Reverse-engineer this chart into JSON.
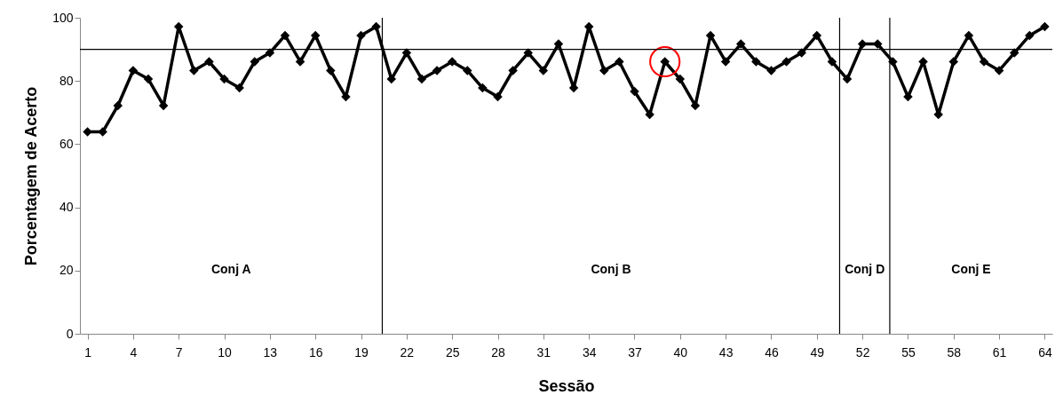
{
  "chart_data": {
    "type": "line",
    "xlabel": "Sessão",
    "ylabel": "Porcentagem de Acerto",
    "x": [
      1,
      2,
      3,
      4,
      5,
      6,
      7,
      8,
      9,
      10,
      11,
      12,
      13,
      14,
      15,
      16,
      17,
      18,
      19,
      20,
      21,
      22,
      23,
      24,
      25,
      26,
      27,
      28,
      29,
      30,
      31,
      32,
      33,
      34,
      35,
      36,
      37,
      38,
      39,
      40,
      41,
      42,
      43,
      44,
      45,
      46,
      47,
      48,
      49,
      50,
      51,
      52,
      53,
      54,
      55,
      56,
      57,
      58,
      59,
      60,
      61,
      62,
      63,
      64
    ],
    "xlim": [
      0.5,
      64.5
    ],
    "xticks": [
      1,
      4,
      7,
      10,
      13,
      16,
      19,
      22,
      25,
      28,
      31,
      34,
      37,
      40,
      43,
      46,
      49,
      52,
      55,
      58,
      61,
      64
    ],
    "ylim": [
      0,
      100
    ],
    "yticks": [
      0,
      20,
      40,
      60,
      80,
      100
    ],
    "series": [
      {
        "color": "#000000",
        "marker": "diamond",
        "values": [
          63.9,
          63.9,
          72.2,
          83.3,
          80.6,
          72.2,
          97.2,
          83.3,
          86.1,
          80.6,
          77.8,
          86.1,
          88.9,
          94.4,
          86.1,
          94.4,
          83.3,
          75,
          94.4,
          97.2,
          80.6,
          88.9,
          80.6,
          83.3,
          86.1,
          83.3,
          77.8,
          75,
          83.3,
          88.9,
          83.3,
          91.7,
          77.8,
          97.2,
          83.3,
          86.1,
          76.7,
          69.4,
          86.1,
          80.6,
          72.2,
          94.4,
          86.1,
          91.7,
          86.1,
          83.3,
          86.1,
          88.9,
          94.4,
          86.1,
          80.6,
          91.7,
          91.7,
          86.1,
          75,
          86.1,
          69.4,
          86.1,
          94.4,
          86.1,
          83.3,
          88.9,
          94.4,
          97.2
        ]
      },
      {
        "type": "scatter",
        "color": "#ff0000",
        "marker": "circle",
        "values": [
          null,
          null,
          null,
          null,
          null,
          null,
          null,
          null,
          null,
          null,
          null,
          null,
          null,
          null,
          null,
          null,
          null,
          null,
          null,
          null,
          null,
          null,
          null,
          null,
          null,
          null,
          null,
          null,
          null,
          null,
          null,
          null,
          null,
          null,
          null,
          null,
          null,
          null,
          86.1,
          null,
          null,
          null,
          null,
          null,
          null,
          null,
          null,
          null,
          null,
          null,
          null,
          null,
          null,
          null,
          null,
          null,
          null,
          null,
          null,
          null,
          null,
          null,
          null,
          null
        ]
      }
    ],
    "ref_lines": [
      {
        "axis": "y",
        "value": 90
      },
      {
        "axis": "x",
        "value": 20.4
      },
      {
        "axis": "x",
        "value": 50.5
      },
      {
        "axis": "x",
        "value": 53.8
      }
    ],
    "annotations": [
      "Conj A",
      "Conj B",
      "Conj D",
      "Conj E"
    ],
    "grid": false
  }
}
